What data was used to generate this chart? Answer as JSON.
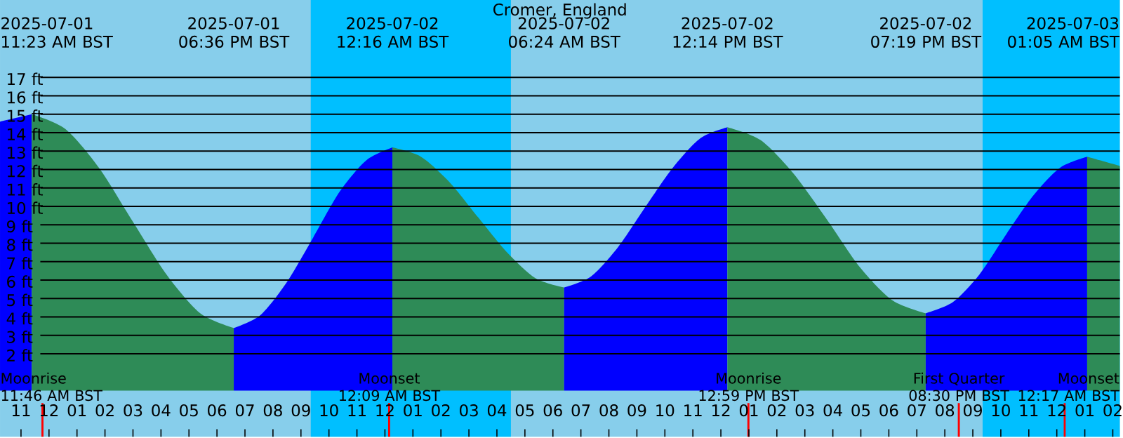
{
  "chart_data": {
    "type": "area",
    "title": "Cromer, England",
    "xlim": [
      "2025-07-01T10:15",
      "2025-07-03T02:15"
    ],
    "ylim": [
      -2.5,
      21.2
    ],
    "xticks": [
      {
        "value": "2025-07-01T11:00",
        "label": "11"
      },
      {
        "value": "2025-07-01T12:00",
        "label": "12"
      },
      {
        "value": "2025-07-01T13:00",
        "label": "01"
      },
      {
        "value": "2025-07-01T14:00",
        "label": "02"
      },
      {
        "value": "2025-07-01T15:00",
        "label": "03"
      },
      {
        "value": "2025-07-01T16:00",
        "label": "04"
      },
      {
        "value": "2025-07-01T17:00",
        "label": "05"
      },
      {
        "value": "2025-07-01T18:00",
        "label": "06"
      },
      {
        "value": "2025-07-01T19:00",
        "label": "07"
      },
      {
        "value": "2025-07-01T20:00",
        "label": "08"
      },
      {
        "value": "2025-07-01T21:00",
        "label": "09"
      },
      {
        "value": "2025-07-01T22:00",
        "label": "10"
      },
      {
        "value": "2025-07-01T23:00",
        "label": "11"
      },
      {
        "value": "2025-07-02T00:00",
        "label": "12"
      },
      {
        "value": "2025-07-02T01:00",
        "label": "01"
      },
      {
        "value": "2025-07-02T02:00",
        "label": "02"
      },
      {
        "value": "2025-07-02T03:00",
        "label": "03"
      },
      {
        "value": "2025-07-02T04:00",
        "label": "04"
      },
      {
        "value": "2025-07-02T05:00",
        "label": "05"
      },
      {
        "value": "2025-07-02T06:00",
        "label": "06"
      },
      {
        "value": "2025-07-02T07:00",
        "label": "07"
      },
      {
        "value": "2025-07-02T08:00",
        "label": "08"
      },
      {
        "value": "2025-07-02T09:00",
        "label": "09"
      },
      {
        "value": "2025-07-02T10:00",
        "label": "10"
      },
      {
        "value": "2025-07-02T11:00",
        "label": "11"
      },
      {
        "value": "2025-07-02T12:00",
        "label": "12"
      },
      {
        "value": "2025-07-02T13:00",
        "label": "01"
      },
      {
        "value": "2025-07-02T14:00",
        "label": "02"
      },
      {
        "value": "2025-07-02T15:00",
        "label": "03"
      },
      {
        "value": "2025-07-02T16:00",
        "label": "04"
      },
      {
        "value": "2025-07-02T17:00",
        "label": "05"
      },
      {
        "value": "2025-07-02T18:00",
        "label": "06"
      },
      {
        "value": "2025-07-02T19:00",
        "label": "07"
      },
      {
        "value": "2025-07-02T20:00",
        "label": "08"
      },
      {
        "value": "2025-07-02T21:00",
        "label": "09"
      },
      {
        "value": "2025-07-02T22:00",
        "label": "10"
      },
      {
        "value": "2025-07-02T23:00",
        "label": "11"
      },
      {
        "value": "2025-07-03T00:00",
        "label": "12"
      },
      {
        "value": "2025-07-03T01:00",
        "label": "01"
      },
      {
        "value": "2025-07-03T02:00",
        "label": "02"
      }
    ],
    "yticks": [
      {
        "value": 2,
        "label": "2 ft"
      },
      {
        "value": 3,
        "label": "3 ft"
      },
      {
        "value": 4,
        "label": "4 ft"
      },
      {
        "value": 5,
        "label": "5 ft"
      },
      {
        "value": 6,
        "label": "6 ft"
      },
      {
        "value": 7,
        "label": "7 ft"
      },
      {
        "value": 8,
        "label": "8 ft"
      },
      {
        "value": 9,
        "label": "9 ft"
      },
      {
        "value": 10,
        "label": "10 ft"
      },
      {
        "value": 11,
        "label": "11 ft"
      },
      {
        "value": 12,
        "label": "12 ft"
      },
      {
        "value": 13,
        "label": "13 ft"
      },
      {
        "value": 14,
        "label": "14 ft"
      },
      {
        "value": 15,
        "label": "15 ft"
      },
      {
        "value": 16,
        "label": "16 ft"
      },
      {
        "value": 17,
        "label": "17 ft"
      }
    ],
    "grid": "y",
    "series": [
      {
        "color": "#0000ff",
        "x": [
          "2025-07-01T10:15",
          "2025-07-01T11:23"
        ],
        "values": [
          14.6,
          15.0
        ]
      },
      {
        "color": "#2e8b57",
        "x": [
          "2025-07-01T11:23",
          "2025-07-01T12:35",
          "2025-07-01T13:47",
          "2025-07-01T14:59",
          "2025-07-01T16:12",
          "2025-07-01T17:24",
          "2025-07-01T18:36"
        ],
        "values": [
          15.0,
          14.2,
          12.1,
          9.2,
          6.3,
          4.2,
          3.4
        ]
      },
      {
        "color": "#0000ff",
        "x": [
          "2025-07-01T18:36",
          "2025-07-01T19:33",
          "2025-07-01T20:30",
          "2025-07-01T21:26",
          "2025-07-01T22:23",
          "2025-07-01T23:20",
          "2025-07-02T00:16"
        ],
        "values": [
          3.4,
          4.1,
          5.9,
          8.3,
          10.8,
          12.5,
          13.2
        ]
      },
      {
        "color": "#2e8b57",
        "x": [
          "2025-07-02T00:16",
          "2025-07-02T01:17",
          "2025-07-02T02:19",
          "2025-07-02T03:20",
          "2025-07-02T04:22",
          "2025-07-02T05:23",
          "2025-07-02T06:24"
        ],
        "values": [
          13.2,
          12.7,
          11.3,
          9.4,
          7.5,
          6.1,
          5.6
        ]
      },
      {
        "color": "#0000ff",
        "x": [
          "2025-07-02T06:24",
          "2025-07-02T07:22",
          "2025-07-02T08:20",
          "2025-07-02T09:19",
          "2025-07-02T10:17",
          "2025-07-02T11:16",
          "2025-07-02T12:14"
        ],
        "values": [
          5.6,
          6.2,
          7.8,
          10.0,
          12.1,
          13.7,
          14.3
        ]
      },
      {
        "color": "#2e8b57",
        "x": [
          "2025-07-02T12:14",
          "2025-07-02T13:25",
          "2025-07-02T14:35",
          "2025-07-02T15:47",
          "2025-07-02T16:58",
          "2025-07-02T18:08",
          "2025-07-02T19:19"
        ],
        "values": [
          14.3,
          13.6,
          11.8,
          9.3,
          6.7,
          4.9,
          4.2
        ]
      },
      {
        "color": "#0000ff",
        "x": [
          "2025-07-02T19:19",
          "2025-07-02T20:17",
          "2025-07-02T21:14",
          "2025-07-02T22:12",
          "2025-07-02T23:10",
          "2025-07-03T00:07",
          "2025-07-03T01:05"
        ],
        "values": [
          4.2,
          4.8,
          6.3,
          8.5,
          10.6,
          12.1,
          12.7
        ]
      },
      {
        "color": "#2e8b57",
        "x": [
          "2025-07-03T01:05",
          "2025-07-03T02:15"
        ],
        "values": [
          12.7,
          12.2
        ]
      }
    ],
    "bands": [
      {
        "axis": "x",
        "from": "2025-07-01T21:21",
        "to": "2025-07-02T04:30",
        "color": "#00bfff"
      },
      {
        "axis": "x",
        "from": "2025-07-02T21:21",
        "to": "2025-07-03T02:15",
        "color": "#00bfff"
      }
    ],
    "ref_lines": [
      {
        "axis": "x",
        "value": "2025-07-01T11:46",
        "label": "Moonrise 11:46 AM BST",
        "color": "#ff0000"
      },
      {
        "axis": "x",
        "value": "2025-07-02T00:09",
        "label": "Moonset 12:09 AM BST",
        "color": "#ff0000"
      },
      {
        "axis": "x",
        "value": "2025-07-02T12:59",
        "label": "Moonrise 12:59 PM BST",
        "color": "#ff0000"
      },
      {
        "axis": "x",
        "value": "2025-07-02T20:30",
        "label": "First Quarter 08:30 PM BST",
        "color": "#ff0000"
      },
      {
        "axis": "x",
        "value": "2025-07-03T00:17",
        "label": "Moonset 12:17 AM BST",
        "color": "#ff0000"
      }
    ],
    "annotations": [
      "2025-07-01 11:23 AM BST",
      "2025-07-01 06:36 PM BST",
      "2025-07-02 12:16 AM BST",
      "2025-07-02 06:24 AM BST",
      "2025-07-02 12:14 PM BST",
      "2025-07-02 07:19 PM BST",
      "2025-07-03 01:05 AM BST"
    ]
  }
}
